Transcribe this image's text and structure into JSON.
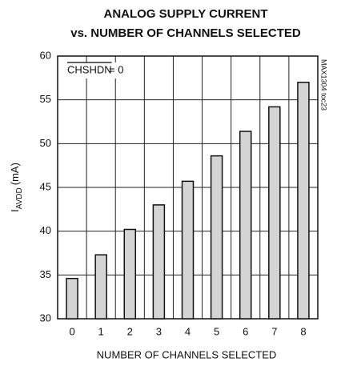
{
  "chart_data": {
    "type": "bar",
    "title": [
      "ANALOG SUPPLY CURRENT",
      "vs. NUMBER OF CHANNELS SELECTED"
    ],
    "xlabel": "NUMBER OF CHANNELS SELECTED",
    "ylabel": {
      "main": "I",
      "subscript": "AVDD",
      "unit": "(mA)"
    },
    "annotation": {
      "overlined": "CHSHDN",
      "text": "= 0"
    },
    "side_note": "MAX1304 toc23",
    "categories": [
      "0",
      "1",
      "2",
      "3",
      "4",
      "5",
      "6",
      "7",
      "8"
    ],
    "values": [
      34.6,
      37.3,
      40.2,
      43.0,
      45.7,
      48.6,
      51.4,
      54.2,
      57.0
    ],
    "color": "#d4d4d4",
    "ylim": [
      30,
      60
    ],
    "yticks": [
      30,
      35,
      40,
      45,
      50,
      55,
      60
    ],
    "grid": true
  }
}
